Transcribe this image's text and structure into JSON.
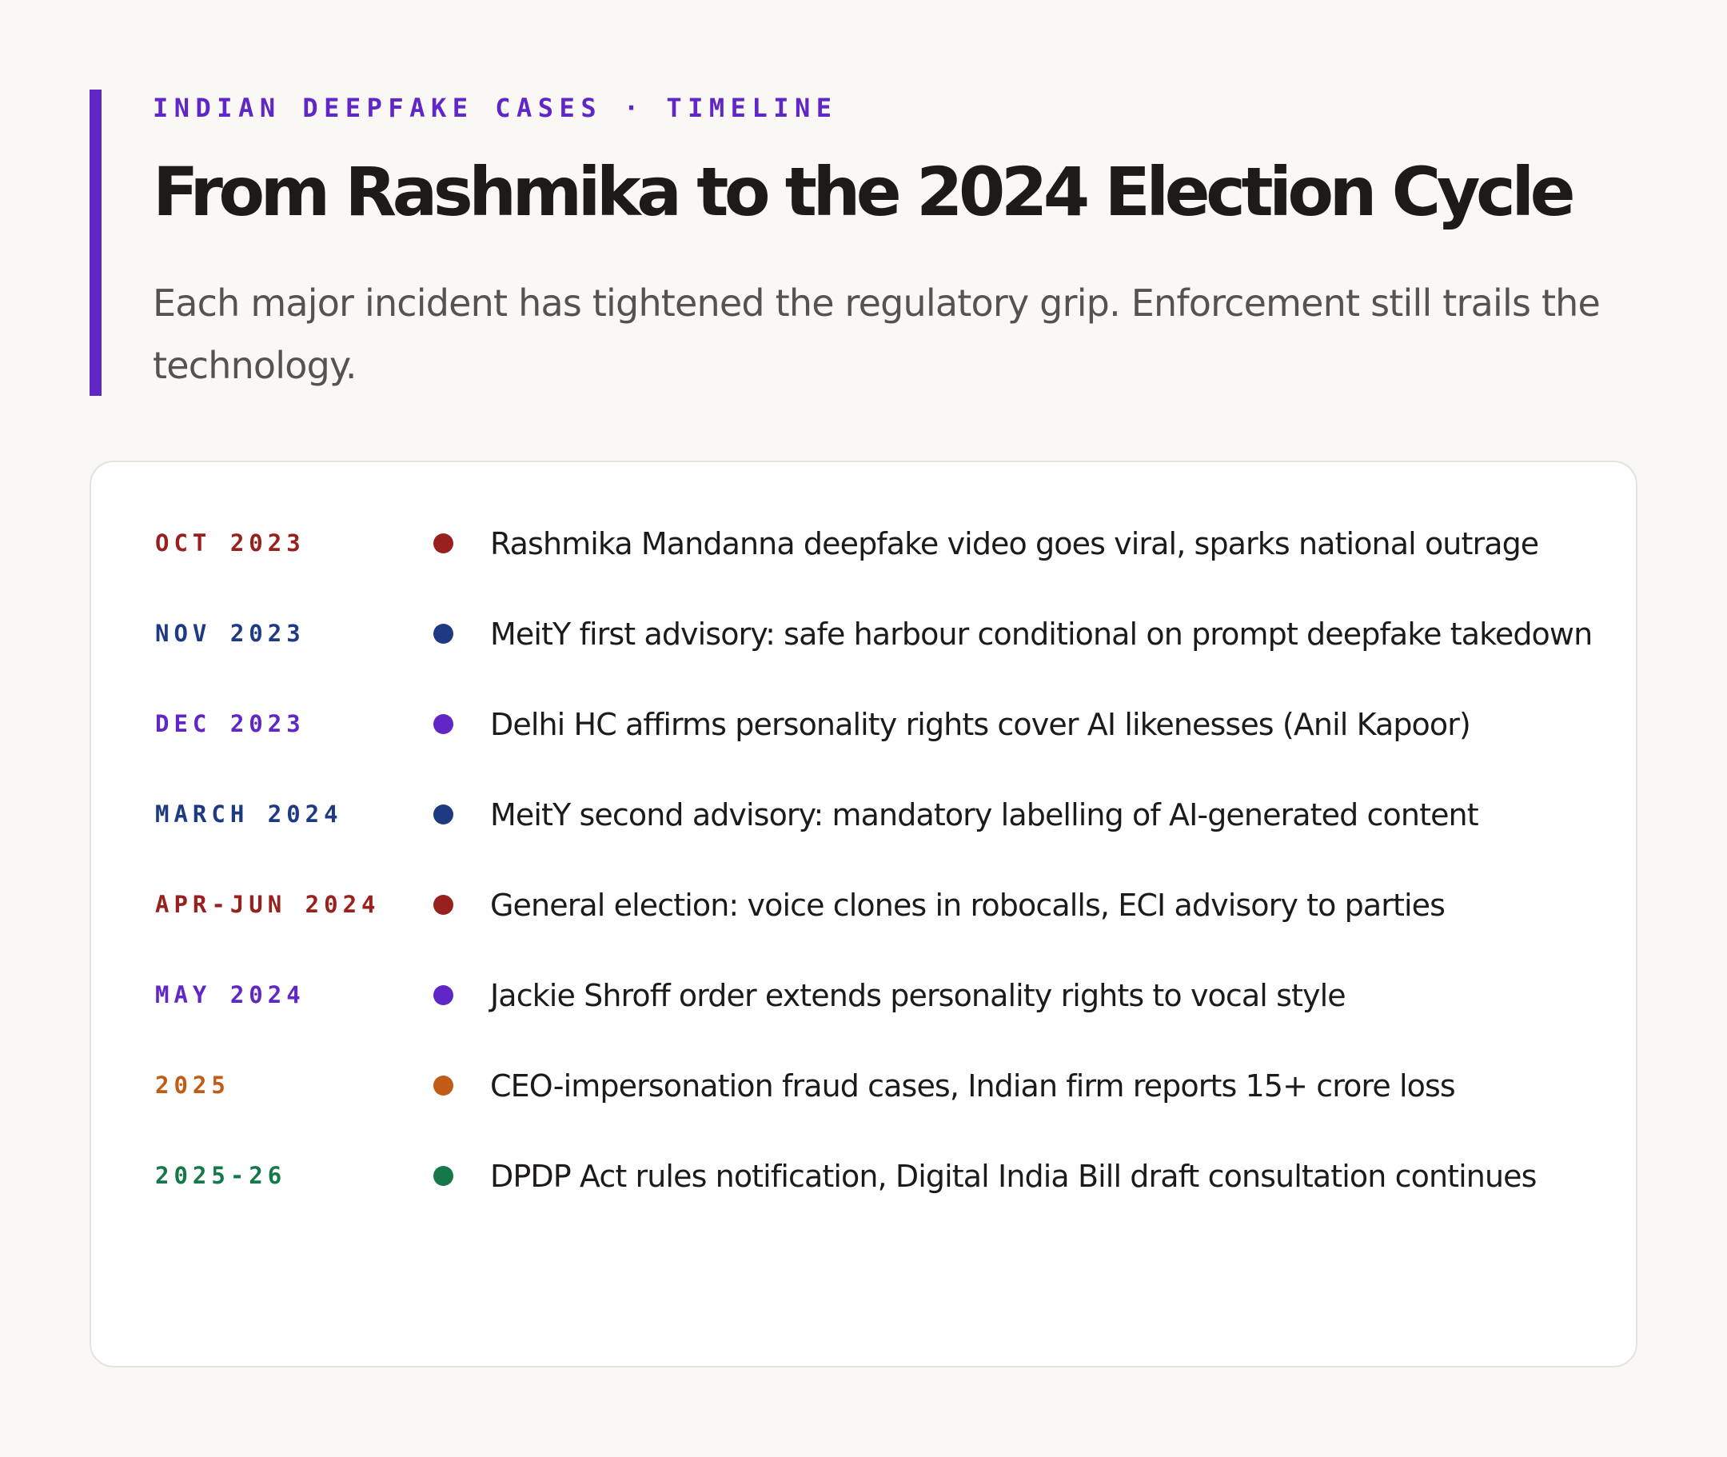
{
  "header": {
    "eyebrow": "INDIAN DEEPFAKE CASES · TIMELINE",
    "title": "From Rashmika to the 2024 Election Cycle",
    "subtitle": "Each major incident has tightened the regulatory grip. Enforcement still trails the technology."
  },
  "colors": {
    "accent": "#6126c6",
    "red": "#98201f",
    "navy": "#1e3a82",
    "purple": "#6126c6",
    "orange": "#c05c15",
    "green": "#16784a"
  },
  "timeline": [
    {
      "date": "OCT 2023",
      "color": "#98201f",
      "description": "Rashmika Mandanna deepfake video goes viral, sparks national outrage"
    },
    {
      "date": "NOV 2023",
      "color": "#1e3a82",
      "description": "MeitY first advisory: safe harbour conditional on prompt deepfake takedown"
    },
    {
      "date": "DEC 2023",
      "color": "#6126c6",
      "description": "Delhi HC affirms personality rights cover AI likenesses (Anil Kapoor)"
    },
    {
      "date": "MARCH 2024",
      "color": "#1e3a82",
      "description": "MeitY second advisory: mandatory labelling of AI-generated content"
    },
    {
      "date": "APR-JUN 2024",
      "color": "#98201f",
      "description": "General election: voice clones in robocalls, ECI advisory to parties"
    },
    {
      "date": "MAY 2024",
      "color": "#6126c6",
      "description": "Jackie Shroff order extends personality rights to vocal style"
    },
    {
      "date": "2025",
      "color": "#c05c15",
      "description": "CEO-impersonation fraud cases, Indian firm reports 15+ crore loss"
    },
    {
      "date": "2025-26",
      "color": "#16784a",
      "description": "DPDP Act rules notification, Digital India Bill draft consultation continues"
    }
  ]
}
